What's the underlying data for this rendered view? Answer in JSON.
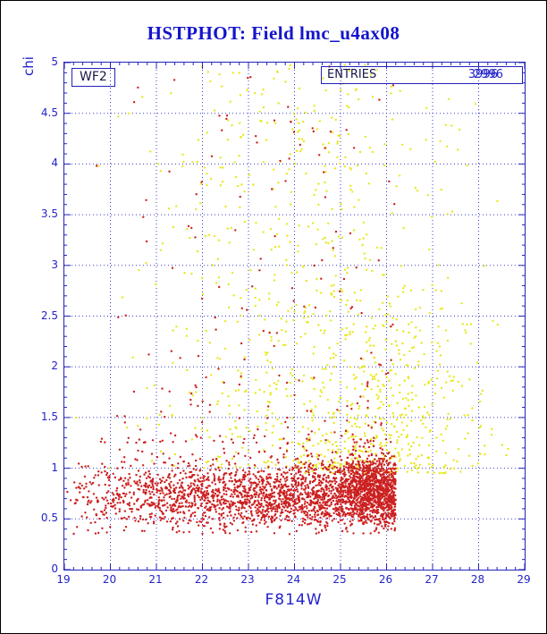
{
  "page": {
    "title": "HSTPHOT: Field lmc_u4ax08"
  },
  "plot": {
    "camera_label": "WF2",
    "entries": {
      "label": "ENTRIES",
      "values": [
        "2996",
        "3996"
      ]
    },
    "xlabel": "F814W",
    "ylabel": "chi"
  },
  "colors": {
    "axis_blue": "#2323bb",
    "text_blue": "#2323cc",
    "title_blue": "#1414cc",
    "grid_blue": "#3b3bcc",
    "point_red": "#cc2020",
    "point_yellow": "#e8e81c"
  },
  "chart_data": {
    "type": "scatter",
    "title": "HSTPHOT: Field lmc_u4ax08",
    "xlabel": "F814W",
    "ylabel": "chi",
    "xlim": [
      19,
      29
    ],
    "ylim": [
      0,
      5
    ],
    "x_ticks": [
      19,
      20,
      21,
      22,
      23,
      24,
      25,
      26,
      27,
      28,
      29
    ],
    "x_tick_labels": [
      "19",
      "20",
      "21",
      "22",
      "23",
      "24",
      "25",
      "26",
      "27",
      "28",
      "29"
    ],
    "y_ticks": [
      0,
      0.5,
      1,
      1.5,
      2,
      2.5,
      3,
      3.5,
      4,
      4.5,
      5
    ],
    "y_tick_labels": [
      "0",
      "0.5",
      "1",
      "1.5",
      "2",
      "2.5",
      "3",
      "3.5",
      "4",
      "4.5",
      "5"
    ],
    "grid": "dotted",
    "legend": "none",
    "annotations": [
      "WF2",
      "ENTRIES 2996"
    ],
    "seed": 42,
    "series": [
      {
        "name": "yellow-points",
        "color": "#e8e81c",
        "marker_px": 1.2,
        "clusters": [
          {
            "n": 680,
            "x": {
              "type": "normal",
              "mean": 24.2,
              "sd": 1.7,
              "min": 19.2,
              "max": 28.8
            },
            "y": {
              "type": "power",
              "min": 1.0,
              "max": 5.0,
              "p": 1.5
            }
          },
          {
            "n": 380,
            "x": {
              "type": "normal",
              "mean": 26.0,
              "sd": 1.1,
              "min": 23.8,
              "max": 28.7
            },
            "y": {
              "type": "power",
              "min": 0.95,
              "max": 2.8,
              "p": 2.0
            }
          }
        ]
      },
      {
        "name": "red-points",
        "color": "#cc2020",
        "marker_px": 1.2,
        "clusters": [
          {
            "n": 2400,
            "x": {
              "type": "power",
              "min": 19.05,
              "max": 26.2,
              "p": 0.6
            },
            "y": {
              "type": "normal",
              "mean": 0.72,
              "sd": 0.17,
              "min": 0.35,
              "max": 1.3
            }
          },
          {
            "n": 700,
            "x": {
              "type": "normal",
              "mean": 25.7,
              "sd": 0.4,
              "min": 24.6,
              "max": 26.2
            },
            "y": {
              "type": "normal",
              "mean": 0.82,
              "sd": 0.16,
              "min": 0.4,
              "max": 1.25
            }
          },
          {
            "n": 200,
            "x": {
              "type": "power",
              "min": 19.3,
              "max": 26.2,
              "p": 0.7
            },
            "y": {
              "type": "power",
              "min": 1.25,
              "max": 5.0,
              "p": 2.5
            }
          }
        ]
      }
    ]
  }
}
